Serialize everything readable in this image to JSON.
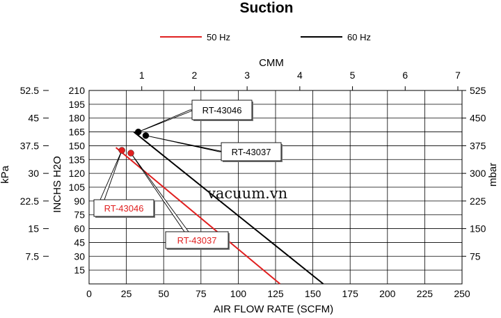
{
  "chart_data": {
    "type": "line",
    "title": "Suction",
    "xlabel": "AIR FLOW RATE (SCFM)",
    "x2label": "CMM",
    "ylabel_left_outer": "kPa",
    "ylabel_left_inner": "INCHS H2O",
    "ylabel_right": "mbar",
    "xlim": [
      0,
      250
    ],
    "ylim": [
      0,
      210
    ],
    "x_ticks": [
      0,
      25,
      50,
      75,
      100,
      125,
      150,
      175,
      200,
      225,
      250
    ],
    "y_ticks": [
      15,
      30,
      45,
      60,
      75,
      90,
      105,
      120,
      135,
      150,
      165,
      180,
      195,
      210
    ],
    "x2_ticks": [
      1,
      2,
      3,
      4,
      5,
      6,
      7
    ],
    "kpa_ticks": [
      "7.5",
      "15",
      "22.5",
      "30",
      "37.5",
      "45",
      "52.5"
    ],
    "mbar_ticks": [
      "75",
      "150",
      "225",
      "300",
      "375",
      "450",
      "525"
    ],
    "grid": true,
    "legend_position": "top",
    "series": [
      {
        "name": "50 Hz",
        "color": "#e02020",
        "x": [
          18,
          128
        ],
        "y": [
          148,
          0
        ]
      },
      {
        "name": "60 Hz",
        "color": "#000000",
        "x": [
          30,
          157
        ],
        "y": [
          165,
          0
        ]
      }
    ],
    "points": [
      {
        "label": "RT-43046",
        "x": 22,
        "y": 145,
        "color": "#e02020"
      },
      {
        "label": "RT-43037",
        "x": 28,
        "y": 142,
        "color": "#e02020"
      },
      {
        "label": "RT-43046",
        "x": 33,
        "y": 165,
        "color": "#000000"
      },
      {
        "label": "RT-43037",
        "x": 38,
        "y": 161,
        "color": "#000000"
      }
    ],
    "watermark": "vacuum.vn"
  }
}
